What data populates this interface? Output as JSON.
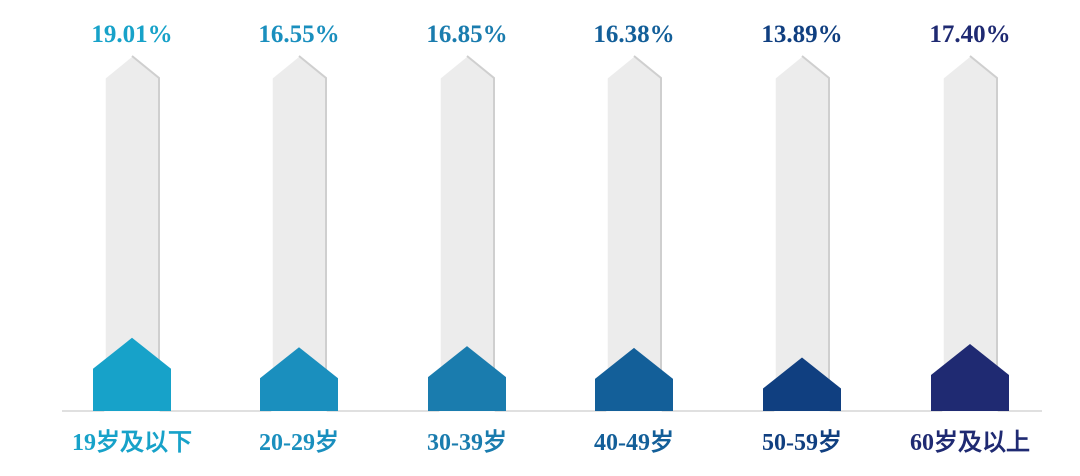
{
  "chart_data": {
    "type": "bar",
    "categories": [
      "19岁及以下",
      "20-29岁",
      "30-39岁",
      "40-49岁",
      "50-59岁",
      "60岁及以上"
    ],
    "values": [
      19.01,
      16.55,
      16.85,
      16.38,
      13.89,
      17.4
    ],
    "value_labels": [
      "19.01%",
      "16.55%",
      "16.85%",
      "16.38%",
      "13.89%",
      "17.40%"
    ],
    "unit": "%",
    "ylim": [
      0,
      100
    ],
    "grid": false,
    "legend": "none",
    "colors": [
      "#17a2c9",
      "#1a8fbe",
      "#1a7cae",
      "#135f99",
      "#103f80",
      "#1f2a72"
    ],
    "background_column_color": "#ececec",
    "baseline_color": "#d6d6d6"
  }
}
